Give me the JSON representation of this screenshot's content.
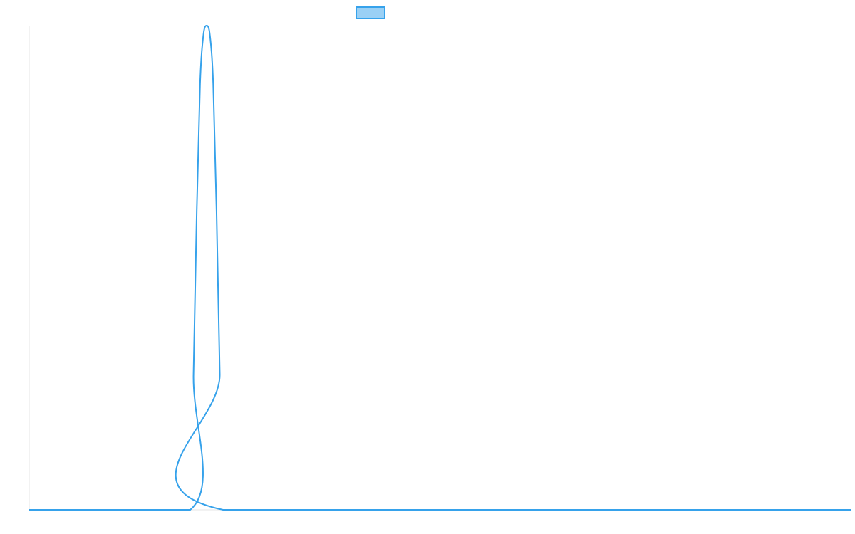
{
  "colors": {
    "series_stroke": "#36a2eb",
    "series_fill": "#9ad0f5",
    "axis": "#e6e6e6",
    "background": "#ffffff"
  },
  "chart_data": {
    "type": "line",
    "title": "",
    "xlabel": "",
    "ylabel": "",
    "grid": false,
    "legend": "top-center",
    "xlim": [
      0,
      100
    ],
    "ylim": [
      0,
      1
    ],
    "series": [
      {
        "name": "",
        "x": [
          0,
          19.6,
          20.0,
          20.4,
          20.8,
          21.2,
          21.6,
          22.0,
          22.4,
          22.8,
          23.2,
          23.6,
          100
        ],
        "values": [
          0,
          0,
          0.28,
          0.62,
          0.88,
          0.98,
          1.0,
          0.98,
          0.88,
          0.62,
          0.28,
          0,
          0
        ]
      }
    ]
  }
}
